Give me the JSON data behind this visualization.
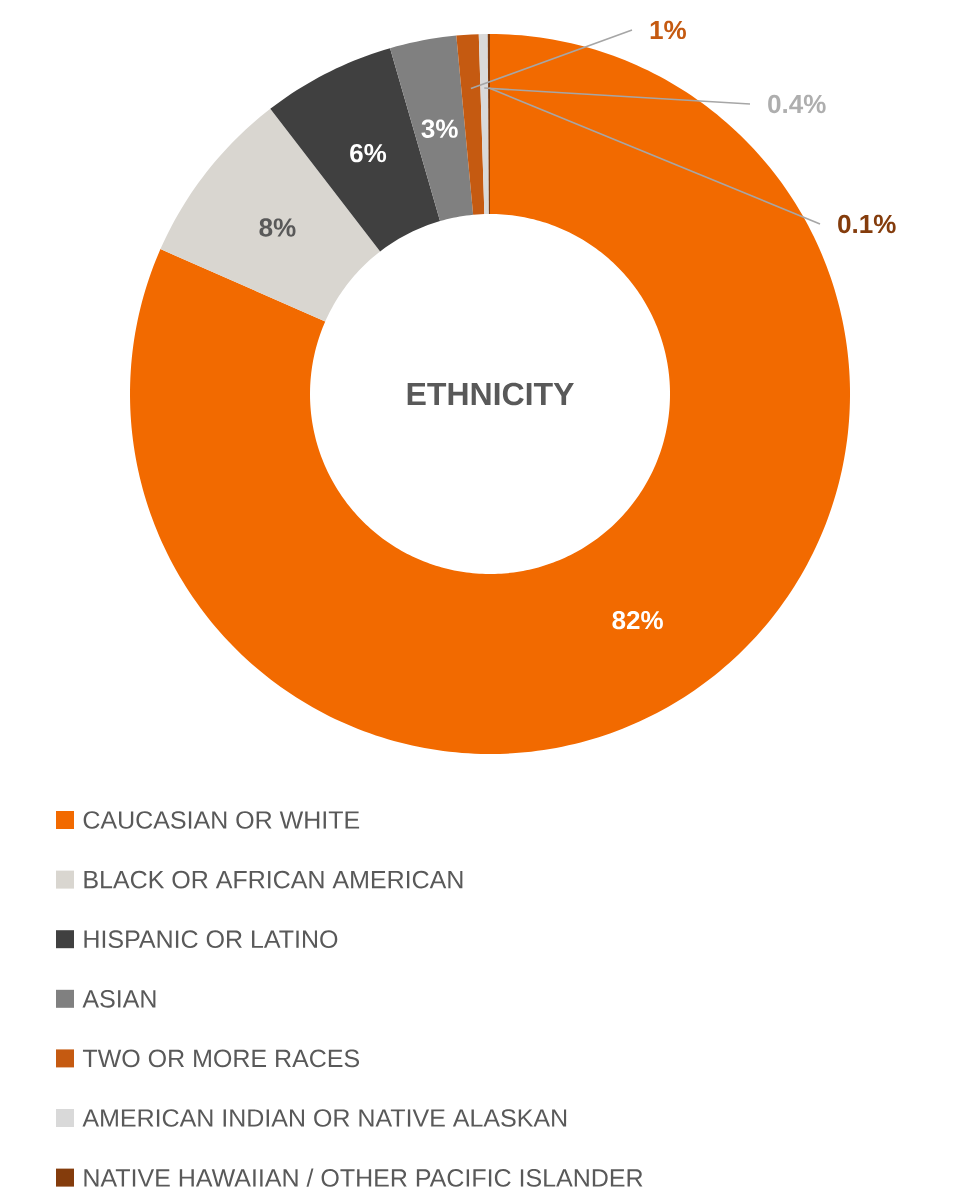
{
  "chart_data": {
    "type": "donut",
    "title": "ETHNICITY",
    "categories": [
      "CAUCASIAN OR WHITE",
      "BLACK OR AFRICAN AMERICAN",
      "HISPANIC OR LATINO",
      "ASIAN",
      "TWO OR MORE RACES",
      "AMERICAN INDIAN OR NATIVE ALASKAN",
      "NATIVE HAWAIIAN / OTHER PACIFIC ISLANDER"
    ],
    "values": [
      82,
      8,
      6,
      3,
      1,
      0.4,
      0.1
    ],
    "value_labels": [
      "82%",
      "8%",
      "6%",
      "3%",
      "1%",
      "0.4%",
      "0.1%"
    ],
    "colors": [
      "#f26a00",
      "#d9d6d0",
      "#404040",
      "#808080",
      "#c55a11",
      "#d9d9d9",
      "#843c0c"
    ],
    "legend": "bottom"
  }
}
